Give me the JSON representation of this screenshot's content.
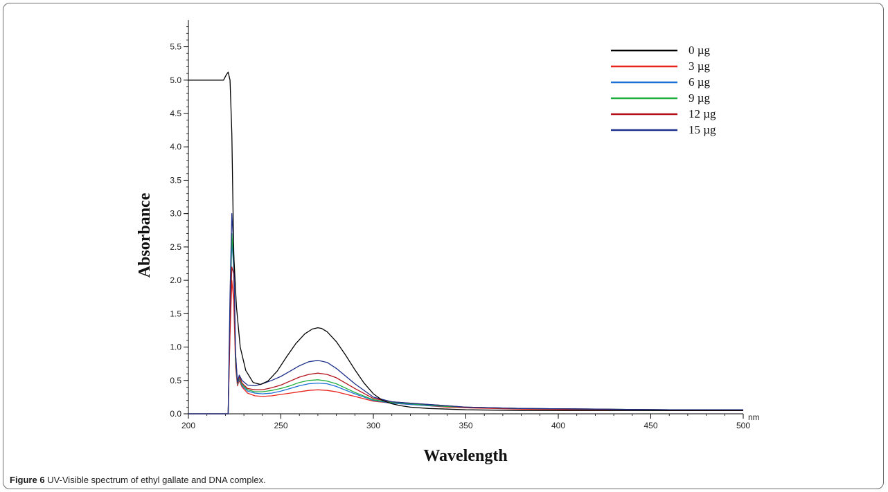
{
  "caption": {
    "label": "Figure 6",
    "text": "UV-Visible spectrum of ethyl gallate and DNA complex."
  },
  "chart_data": {
    "type": "line",
    "title": "",
    "xlabel": "Wavelength",
    "ylabel": "Absorbance",
    "x_unit": "nm",
    "xlim": [
      200,
      500
    ],
    "ylim": [
      0,
      5.9
    ],
    "xticks": [
      200,
      250,
      300,
      350,
      400,
      450,
      500
    ],
    "yticks": [
      0.0,
      0.5,
      1.0,
      1.5,
      2.0,
      2.5,
      3.0,
      3.5,
      4.0,
      4.5,
      5.0,
      5.5
    ],
    "ytick_labels": [
      "0.0",
      "0.5",
      "1.0",
      "1.5",
      "2.0",
      "2.5",
      "3.0",
      "3.5",
      "4.0",
      "4.5",
      "5.0",
      "5.5"
    ],
    "grid": false,
    "legend_position": "top-right",
    "series": [
      {
        "name": "0 µg",
        "color": "#000000",
        "x": [
          200,
          219,
          220.5,
          221.5,
          222.5,
          223.5,
          224.5,
          226,
          228,
          231,
          235,
          239,
          243,
          248,
          253,
          258,
          263,
          267,
          270,
          272,
          275,
          280,
          285,
          290,
          295,
          300,
          305,
          310,
          315,
          320,
          330,
          340,
          350,
          380,
          420,
          460,
          500
        ],
        "y": [
          5.0,
          5.0,
          5.08,
          5.12,
          5.0,
          4.2,
          2.4,
          1.6,
          1.0,
          0.65,
          0.47,
          0.44,
          0.49,
          0.64,
          0.85,
          1.05,
          1.2,
          1.27,
          1.29,
          1.28,
          1.23,
          1.08,
          0.88,
          0.66,
          0.46,
          0.3,
          0.2,
          0.15,
          0.12,
          0.1,
          0.08,
          0.07,
          0.06,
          0.05,
          0.05,
          0.05,
          0.05
        ]
      },
      {
        "name": "3 µg",
        "color": "#e8231c",
        "x": [
          200,
          221.5,
          222.5,
          223.5,
          224.5,
          225.5,
          226.5,
          227.5,
          229,
          232,
          236,
          240,
          245,
          250,
          255,
          260,
          265,
          270,
          275,
          280,
          290,
          300,
          310,
          320,
          330,
          340,
          350,
          380,
          420,
          460,
          500
        ],
        "y": [
          0.0,
          0.0,
          1.2,
          2.0,
          1.7,
          0.7,
          0.42,
          0.5,
          0.4,
          0.31,
          0.27,
          0.26,
          0.27,
          0.29,
          0.31,
          0.33,
          0.35,
          0.36,
          0.35,
          0.33,
          0.26,
          0.19,
          0.16,
          0.14,
          0.12,
          0.1,
          0.09,
          0.07,
          0.06,
          0.05,
          0.05
        ]
      },
      {
        "name": "6 µg",
        "color": "#1b6fd6",
        "x": [
          200,
          221.5,
          222.5,
          223.5,
          224.5,
          225.5,
          226.5,
          227.5,
          229,
          232,
          236,
          240,
          245,
          250,
          255,
          260,
          265,
          270,
          275,
          280,
          290,
          300,
          310,
          320,
          330,
          340,
          350,
          380,
          420,
          460,
          500
        ],
        "y": [
          0.0,
          0.0,
          1.5,
          2.6,
          2.2,
          0.8,
          0.44,
          0.52,
          0.42,
          0.34,
          0.31,
          0.3,
          0.31,
          0.34,
          0.38,
          0.42,
          0.45,
          0.46,
          0.45,
          0.41,
          0.3,
          0.2,
          0.16,
          0.14,
          0.12,
          0.11,
          0.1,
          0.08,
          0.07,
          0.06,
          0.06
        ]
      },
      {
        "name": "9 µg",
        "color": "#1fae3c",
        "x": [
          200,
          221.5,
          222.5,
          223.5,
          224.5,
          225.5,
          226.5,
          227.5,
          229,
          232,
          236,
          240,
          245,
          250,
          255,
          260,
          265,
          270,
          275,
          280,
          290,
          300,
          310,
          320,
          330,
          340,
          350,
          380,
          420,
          460,
          500
        ],
        "y": [
          0.0,
          0.0,
          1.6,
          2.7,
          2.3,
          0.8,
          0.45,
          0.54,
          0.44,
          0.36,
          0.33,
          0.33,
          0.35,
          0.38,
          0.42,
          0.47,
          0.5,
          0.51,
          0.49,
          0.45,
          0.32,
          0.21,
          0.17,
          0.15,
          0.13,
          0.11,
          0.1,
          0.08,
          0.07,
          0.06,
          0.06
        ]
      },
      {
        "name": "12 µg",
        "color": "#b3121a",
        "x": [
          200,
          221.5,
          222.5,
          223.5,
          224.5,
          225.5,
          226.5,
          227.5,
          229,
          232,
          236,
          240,
          245,
          250,
          255,
          260,
          265,
          270,
          275,
          280,
          290,
          300,
          310,
          320,
          330,
          340,
          350,
          380,
          420,
          460,
          500
        ],
        "y": [
          0.0,
          0.0,
          1.3,
          2.2,
          2.1,
          0.9,
          0.46,
          0.56,
          0.46,
          0.38,
          0.36,
          0.36,
          0.39,
          0.43,
          0.49,
          0.55,
          0.59,
          0.61,
          0.59,
          0.54,
          0.38,
          0.23,
          0.18,
          0.16,
          0.14,
          0.12,
          0.1,
          0.08,
          0.07,
          0.06,
          0.06
        ]
      },
      {
        "name": "15 µg",
        "color": "#1c2f8a",
        "x": [
          200,
          221.5,
          222.5,
          223.5,
          224.5,
          225.5,
          226.5,
          227.5,
          229,
          232,
          236,
          240,
          245,
          250,
          255,
          260,
          265,
          270,
          275,
          280,
          290,
          300,
          310,
          320,
          330,
          340,
          350,
          380,
          420,
          460,
          500
        ],
        "y": [
          0.0,
          0.0,
          1.8,
          3.0,
          2.5,
          0.9,
          0.48,
          0.58,
          0.5,
          0.43,
          0.42,
          0.45,
          0.5,
          0.56,
          0.64,
          0.72,
          0.78,
          0.8,
          0.77,
          0.68,
          0.45,
          0.25,
          0.18,
          0.16,
          0.14,
          0.12,
          0.1,
          0.08,
          0.07,
          0.06,
          0.06
        ]
      }
    ]
  }
}
